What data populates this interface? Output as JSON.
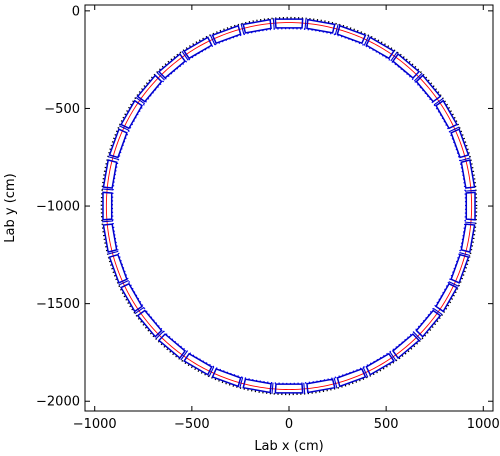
{
  "chart_data": {
    "type": "scatter",
    "title": "",
    "xlabel": "Lab x (cm)",
    "ylabel": "Lab y (cm)",
    "xlim": [
      -1050,
      1050
    ],
    "ylim": [
      -2050,
      30
    ],
    "xticks": [
      -1000,
      -500,
      0,
      500,
      1000
    ],
    "xtick_labels": [
      "−1000",
      "−500",
      "0",
      "500",
      "1000"
    ],
    "yticks": [
      0,
      -500,
      -1000,
      -1500,
      -2000
    ],
    "ytick_labels": [
      "0",
      "−500",
      "−1000",
      "−1500",
      "−2000"
    ],
    "grid": false,
    "legend": "none",
    "ring_center": [
      0,
      -1000
    ],
    "series": [
      {
        "kind": "dotted-circle",
        "radius": 965,
        "color": "#000000"
      },
      {
        "kind": "dotted-circle",
        "radius": 910,
        "color": "#0000ff"
      },
      {
        "kind": "solid-circle",
        "radius": 940,
        "color": "#ff0000"
      },
      {
        "kind": "modules",
        "count": 36,
        "r_inner": 915,
        "r_outer": 960,
        "half_width_deg": 4.2,
        "gap_deg": 0.6,
        "color": "#0000cc"
      }
    ]
  }
}
